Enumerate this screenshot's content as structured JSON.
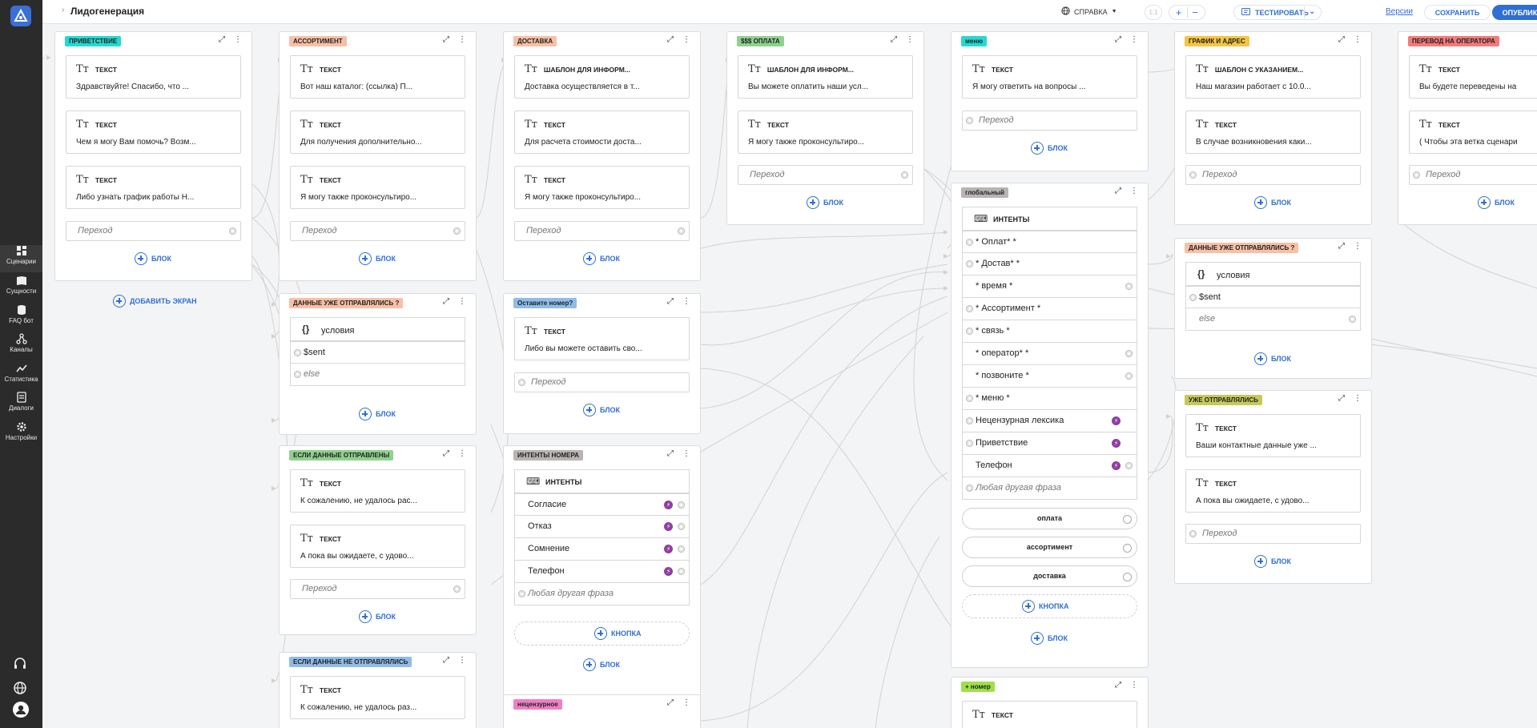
{
  "app": {
    "title": "Лидогенерация",
    "help": "СПРАВКА",
    "zoom_reset": "1:1",
    "test": "ТЕСТИРОВАТЬ",
    "versions": "Версии",
    "save": "СОХРАНИТЬ",
    "publish": "ОПУБЛИКОВАТЬ"
  },
  "sidebar": {
    "items": [
      {
        "label": "Сценарии",
        "icon": "dashboard-icon"
      },
      {
        "label": "Сущности",
        "icon": "book-icon"
      },
      {
        "label": "FAQ бот",
        "icon": "database-icon"
      },
      {
        "label": "Каналы",
        "icon": "nodes-icon"
      },
      {
        "label": "Статистика",
        "icon": "chart-icon"
      },
      {
        "label": "Диалоги",
        "icon": "chat-icon"
      },
      {
        "label": "Настройки",
        "icon": "gear-icon"
      }
    ]
  },
  "common": {
    "text": "ТЕКСТ",
    "transition": "Переход",
    "block": "БЛОК",
    "button": "КНОПКА",
    "conditions": "условия",
    "intents": "ИНТЕНТЫ",
    "else": "else",
    "sent": "$sent",
    "other_phrase": "Любая другая фраза",
    "add_screen": "ДОБАВИТЬ ЭКРАН"
  },
  "cards": {
    "greeting": {
      "tag": "ПРИВЕТСТВИЕ",
      "texts": [
        "Здравствуйте! Спасибо, что ...",
        "Чем я могу Вам помочь? Возм...",
        "Либо узнать график работы Н..."
      ]
    },
    "assortment": {
      "tag": "АССОРТИМЕНТ",
      "texts": [
        "Вот наш каталог: (ссылка) П...",
        "Для получения дополнительно...",
        "Я могу также проконсультиро..."
      ]
    },
    "delivery": {
      "tag": "ДОСТАВКА",
      "t1": "ШАБЛОН ДЛЯ ИНФОРМ...",
      "texts": [
        "Доставка осуществляется в т...",
        "Для расчета стоимости доста...",
        "Я могу также проконсультиро..."
      ]
    },
    "payment": {
      "tag": "$$$ ОПЛАТА",
      "t1": "ШАБЛОН ДЛЯ ИНФОРМ...",
      "texts": [
        "Вы можете оплатить наши усл...",
        "Я могу также проконсультиро..."
      ]
    },
    "menu": {
      "tag": "меню",
      "texts": [
        "Я могу ответить на вопросы ..."
      ]
    },
    "schedule": {
      "tag": "ГРАФИК И АДРЕС",
      "t1": "ШАБЛОН С УКАЗАНИЕМ...",
      "texts": [
        "Наш магазин работает с 10.0...",
        "В случае возникновения каки..."
      ]
    },
    "operator": {
      "tag": "ПЕРЕВОД НА ОПЕРАТОРА",
      "texts": [
        "Вы будете переведены на",
        "( Чтобы эта ветка сценари"
      ]
    },
    "sent1": {
      "tag": "ДАННЫЕ УЖЕ ОТПРАВЛЯЛИСЬ ?"
    },
    "leave_number": {
      "tag": "Оставите номер?",
      "texts": [
        "Либо вы можете оставить сво..."
      ]
    },
    "global": {
      "tag": "глобальный",
      "intents": [
        "* Оплат* *",
        "* Достав* *",
        "* время *",
        "* Ассортимент *",
        "* связь *",
        "* оператор* *",
        "* позвоните *",
        "* меню *",
        "Нецензурная лексика",
        "Приветствие",
        "Телефон"
      ],
      "buttons": [
        "оплата",
        "ассортимент",
        "доставка"
      ]
    },
    "sent2": {
      "tag": "ДАННЫЕ УЖЕ ОТПРАВЛЯЛИСЬ ?"
    },
    "if_sent": {
      "tag": "ЕСЛИ ДАННЫЕ ОТПРАВЛЕНЫ",
      "texts": [
        "К сожалению, не удалось рас...",
        "А пока вы ожидаете, с удово..."
      ]
    },
    "intents_number": {
      "tag": "ИНТЕНТЫ НОМЕРА",
      "intents": [
        "Согласие",
        "Отказ",
        "Сомнение",
        "Телефон"
      ]
    },
    "already_sent": {
      "tag": "УЖЕ ОТПРАВЛЯЛИСЬ",
      "texts": [
        "Ваши контактные данные уже ...",
        "А пока вы ожидаете, с удово..."
      ]
    },
    "if_not_sent": {
      "tag": "ЕСЛИ ДАННЫЕ НЕ ОТПРАВЛЯЛИСЬ",
      "texts": [
        "К сожалению, не удалось раз..."
      ]
    },
    "obscene": {
      "tag": "нецензурное"
    },
    "plus_number": {
      "tag": "+ номер"
    }
  },
  "colors": {
    "sidebar_bg": "#2b2b2b",
    "accent": "#2f6fd3",
    "tag_cyan": "#25d9d0",
    "tag_orange": "#f7c0a6",
    "tag_green": "#8fd18f",
    "tag_yellow": "#f4c542",
    "tag_red": "#f27a7a",
    "tag_blue": "#8fbce8",
    "tag_gray": "#b9b3b3",
    "tag_olive": "#c5c95a",
    "tag_pink": "#f07fc7",
    "tag_lime": "#9ee04a"
  }
}
